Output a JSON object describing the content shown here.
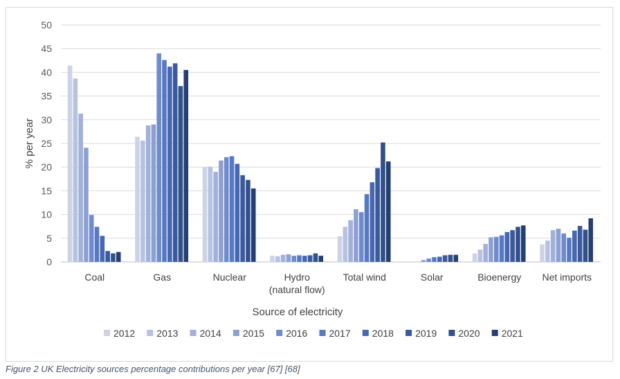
{
  "caption": "Figure 2 UK Electricity sources percentage contributions per year [67] [68]",
  "chart_data": {
    "type": "bar",
    "categories": [
      "Coal",
      "Gas",
      "Nuclear",
      "Hydro\n(natural flow)",
      "Total wind",
      "Solar",
      "Bioenergy",
      "Net imports"
    ],
    "xlabel": "Source of electricity",
    "ylabel": "% per year",
    "ylim": [
      0,
      50
    ],
    "yticks": [
      0,
      5,
      10,
      15,
      20,
      25,
      30,
      35,
      40,
      45,
      50
    ],
    "grid": true,
    "legend_position": "bottom",
    "series": [
      {
        "name": "2012",
        "color": "#ccd3e6",
        "values": [
          41.4,
          26.4,
          20.0,
          1.3,
          5.4,
          0.0,
          1.8,
          3.7
        ]
      },
      {
        "name": "2013",
        "color": "#b7c2e0",
        "values": [
          38.7,
          25.6,
          20.1,
          1.2,
          7.4,
          0.0,
          2.6,
          4.5
        ]
      },
      {
        "name": "2014",
        "color": "#a2b1d9",
        "values": [
          31.3,
          28.8,
          19.0,
          1.5,
          8.8,
          0.0,
          3.8,
          6.7
        ]
      },
      {
        "name": "2015",
        "color": "#8ca0d2",
        "values": [
          24.1,
          29.0,
          21.4,
          1.6,
          11.1,
          0.4,
          5.2,
          7.0
        ]
      },
      {
        "name": "2016",
        "color": "#6f8bcb",
        "values": [
          9.9,
          44.0,
          22.1,
          1.3,
          10.5,
          0.7,
          5.3,
          6.0
        ]
      },
      {
        "name": "2017",
        "color": "#5779c4",
        "values": [
          7.4,
          42.6,
          22.3,
          1.4,
          14.3,
          1.0,
          5.6,
          5.1
        ]
      },
      {
        "name": "2018",
        "color": "#4767b0",
        "values": [
          5.5,
          41.2,
          20.7,
          1.3,
          16.8,
          1.1,
          6.3,
          6.6
        ]
      },
      {
        "name": "2019",
        "color": "#3b5a9e",
        "values": [
          2.3,
          41.9,
          18.3,
          1.4,
          19.8,
          1.4,
          6.7,
          7.6
        ]
      },
      {
        "name": "2020",
        "color": "#31508c",
        "values": [
          1.8,
          37.1,
          17.3,
          1.8,
          25.2,
          1.5,
          7.4,
          6.8
        ]
      },
      {
        "name": "2021",
        "color": "#253f72",
        "values": [
          2.1,
          40.5,
          15.5,
          1.3,
          21.2,
          1.5,
          7.7,
          9.2
        ]
      }
    ]
  }
}
